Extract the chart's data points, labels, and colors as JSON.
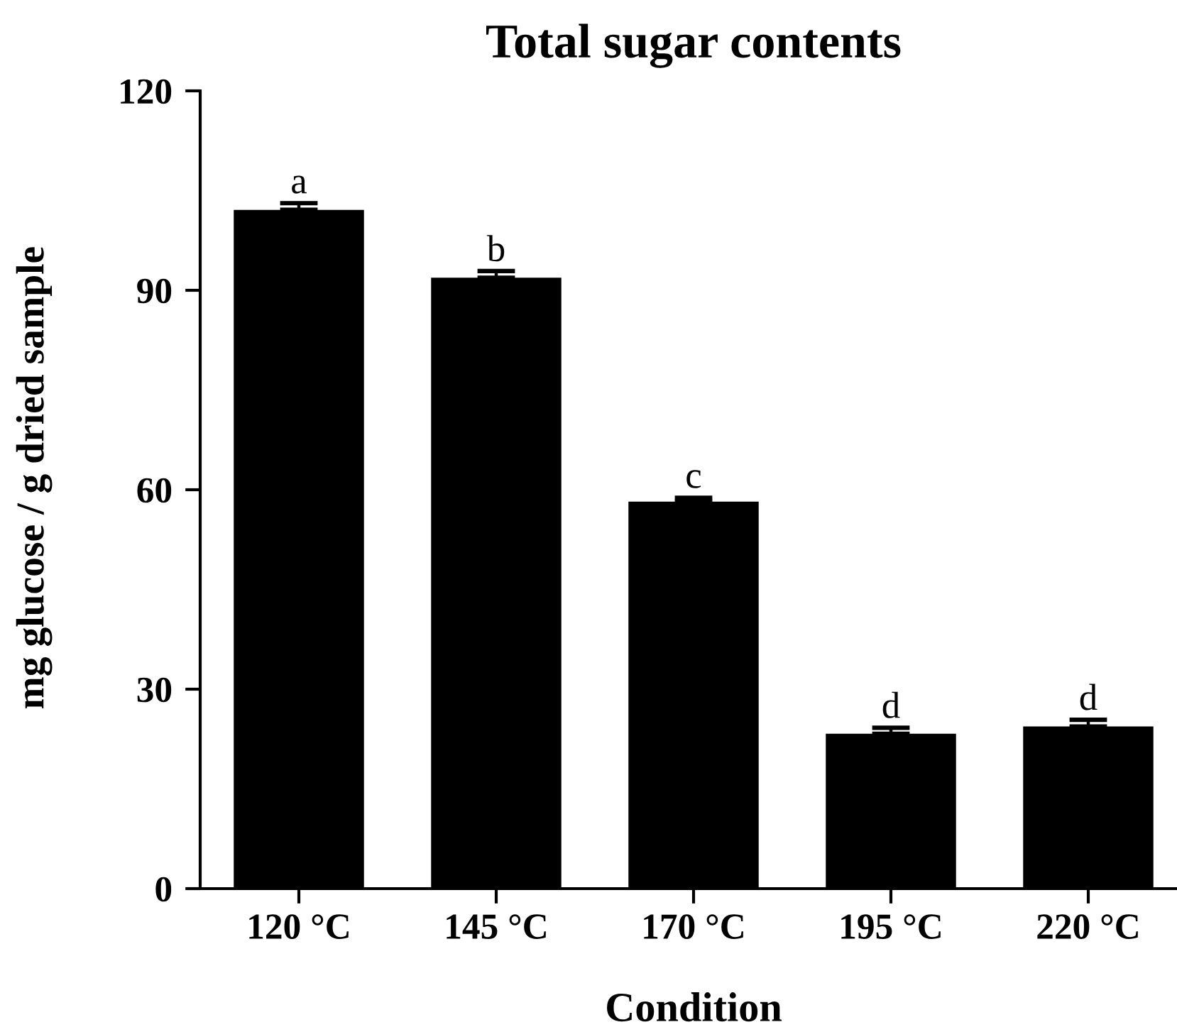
{
  "chart_data": {
    "type": "bar",
    "title": "Total sugar contents",
    "xlabel": "Condition",
    "ylabel": "mg glucose / g dried sample",
    "categories": [
      "120 °C",
      "145 °C",
      "170 °C",
      "195 °C",
      "220 °C"
    ],
    "values": [
      102.1,
      91.9,
      58.2,
      23.3,
      24.4
    ],
    "errors": [
      [
        102.1,
        103.1
      ],
      [
        91.9,
        92.9
      ],
      [
        58.2,
        58.8
      ],
      [
        23.3,
        24.2
      ],
      [
        24.4,
        25.4
      ]
    ],
    "color": "#000000",
    "ylim": [
      0,
      120
    ],
    "yticks": [
      0,
      30,
      60,
      90,
      120
    ],
    "grid": false,
    "annotations": [
      {
        "text": "a",
        "x": "120 °C",
        "y": 103.1
      },
      {
        "text": "b",
        "x": "145 °C",
        "y": 92.9
      },
      {
        "text": "c",
        "x": "170 °C",
        "y": 58.8
      },
      {
        "text": "d",
        "x": "195 °C",
        "y": 24.2
      },
      {
        "text": "d",
        "x": "220 °C",
        "y": 25.4
      }
    ]
  }
}
